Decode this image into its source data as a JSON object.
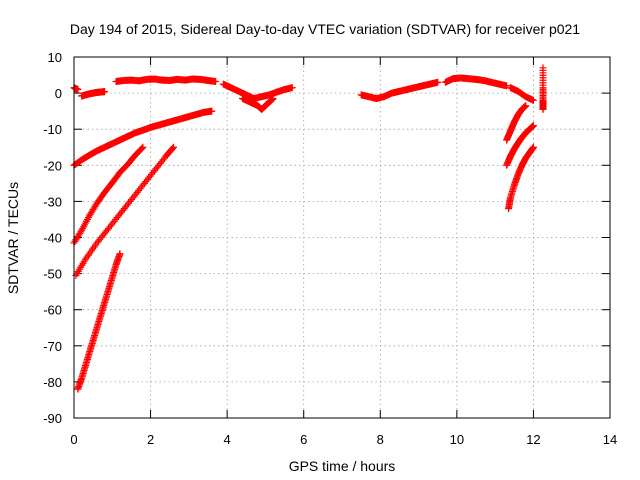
{
  "chart_data": {
    "type": "scatter",
    "title": "Day 194 of 2015, Sidereal Day-to-day VTEC variation (SDTVAR) for receiver p021",
    "xlabel": "GPS time / hours",
    "ylabel": "SDTVAR / TECUs",
    "xlim": [
      0,
      14
    ],
    "ylim": [
      -90,
      10
    ],
    "xticks": [
      "0",
      "2",
      "4",
      "6",
      "8",
      "10",
      "12",
      "14"
    ],
    "yticks": [
      "10",
      "0",
      "-10",
      "-20",
      "-30",
      "-40",
      "-50",
      "-60",
      "-70",
      "-80",
      "-90"
    ],
    "grid": true,
    "marker": "plus",
    "color": "#ff0000",
    "series": [
      {
        "x": [
          0.0,
          0.05,
          0.1
        ],
        "y": [
          1.5,
          1.2,
          1.0
        ]
      },
      {
        "x": [
          0.2,
          0.3,
          0.4,
          0.5,
          0.6,
          0.7,
          0.8
        ],
        "y": [
          -0.8,
          -0.5,
          -0.2,
          0.0,
          0.2,
          0.3,
          0.4
        ]
      },
      {
        "x": [
          1.1,
          1.3,
          1.5,
          1.7,
          1.9,
          2.1,
          2.3,
          2.5,
          2.7,
          2.9,
          3.1,
          3.3,
          3.5,
          3.7
        ],
        "y": [
          3.2,
          3.5,
          3.6,
          3.4,
          3.8,
          3.9,
          3.6,
          3.5,
          3.8,
          3.6,
          3.9,
          3.8,
          3.5,
          3.2
        ]
      },
      {
        "x": [
          3.9,
          4.1,
          4.3,
          4.5,
          4.7,
          4.9,
          5.1,
          5.3,
          5.5,
          5.7
        ],
        "y": [
          2.5,
          1.5,
          0.5,
          -0.5,
          -1.5,
          -1.0,
          -0.5,
          0.3,
          1.0,
          1.5
        ]
      },
      {
        "x": [
          4.4,
          4.6,
          4.8,
          4.9,
          5.0,
          5.1,
          5.2
        ],
        "y": [
          -1.5,
          -2.5,
          -3.5,
          -4.5,
          -3.5,
          -2.5,
          -1.5
        ]
      },
      {
        "x": [
          7.5,
          7.7,
          7.9,
          8.1,
          8.3,
          8.5,
          8.7,
          8.9,
          9.1,
          9.3,
          9.5
        ],
        "y": [
          -0.5,
          -1.0,
          -1.5,
          -1.0,
          0.0,
          0.5,
          1.0,
          1.5,
          2.0,
          2.5,
          3.0
        ]
      },
      {
        "x": [
          9.7,
          9.9,
          10.1,
          10.3,
          10.5,
          10.7,
          10.9,
          11.1,
          11.3
        ],
        "y": [
          3.0,
          4.0,
          4.2,
          4.0,
          3.8,
          3.5,
          3.0,
          2.5,
          2.0
        ]
      },
      {
        "x": [
          11.4,
          11.6,
          11.8,
          12.0
        ],
        "y": [
          1.5,
          0.5,
          -1.0,
          -2.0
        ]
      },
      {
        "x": [
          12.25,
          12.25,
          12.25,
          12.25,
          12.25
        ],
        "y": [
          7.0,
          1.5,
          -2.0,
          -3.0,
          -4.5
        ]
      },
      {
        "x": [
          0.0,
          0.2,
          0.4,
          0.6,
          0.8,
          1.0,
          1.2,
          1.4,
          1.6,
          1.8,
          2.0,
          2.2,
          2.4,
          2.6,
          2.8,
          3.0,
          3.2,
          3.4,
          3.6
        ],
        "y": [
          -20.0,
          -18.5,
          -17.2,
          -16.0,
          -15.0,
          -14.0,
          -13.0,
          -12.0,
          -11.0,
          -10.3,
          -9.5,
          -8.9,
          -8.3,
          -7.7,
          -7.1,
          -6.5,
          -5.9,
          -5.3,
          -5.0
        ]
      },
      {
        "x": [
          0.0,
          0.2,
          0.4,
          0.6,
          0.8,
          1.0,
          1.2,
          1.4,
          1.6,
          1.8
        ],
        "y": [
          -41.5,
          -38.0,
          -34.0,
          -30.5,
          -27.5,
          -24.8,
          -22.0,
          -19.8,
          -17.2,
          -15.0
        ]
      },
      {
        "x": [
          0.05,
          0.3,
          0.6,
          0.9,
          1.2,
          1.5,
          1.8,
          2.1,
          2.4,
          2.6
        ],
        "y": [
          -50.5,
          -46.0,
          -41.5,
          -37.5,
          -33.5,
          -29.5,
          -25.5,
          -21.5,
          -17.5,
          -15.0
        ]
      },
      {
        "x": [
          0.1,
          0.2,
          0.3,
          0.4,
          0.5,
          0.6,
          0.7,
          0.8,
          0.9,
          1.0,
          1.1,
          1.2
        ],
        "y": [
          -82.0,
          -79.0,
          -75.5,
          -72.0,
          -68.5,
          -65.0,
          -61.5,
          -58.0,
          -54.5,
          -51.0,
          -47.5,
          -44.5
        ]
      },
      {
        "x": [
          11.35,
          11.4,
          11.5,
          11.6,
          11.7,
          11.8,
          11.9,
          12.0
        ],
        "y": [
          -32.0,
          -29.0,
          -25.5,
          -22.5,
          -20.0,
          -18.0,
          -16.5,
          -15.0
        ]
      },
      {
        "x": [
          11.3,
          11.4,
          11.5,
          11.6,
          11.7,
          11.8,
          11.9,
          12.0
        ],
        "y": [
          -20.0,
          -17.5,
          -15.5,
          -13.8,
          -12.3,
          -11.0,
          -10.0,
          -9.0
        ]
      },
      {
        "x": [
          11.3,
          11.4,
          11.5,
          11.6,
          11.7,
          11.8
        ],
        "y": [
          -13.0,
          -10.5,
          -8.0,
          -6.0,
          -4.5,
          -3.5
        ]
      }
    ]
  }
}
